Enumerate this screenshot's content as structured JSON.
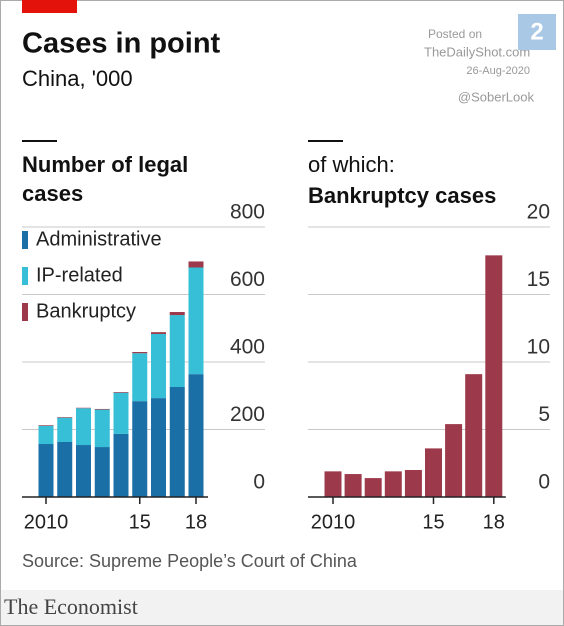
{
  "title": "Cases in point",
  "subtitle": "China, '000",
  "watermark": [
    "Posted on",
    "TheDailyShot.com",
    "26-Aug-2020",
    "@SoberLook"
  ],
  "badge": "2",
  "source": "Source: Supreme People’s Court of China",
  "brand": "The Economist",
  "chart_data": [
    {
      "type": "stacked_bar",
      "title": "Number of legal cases",
      "categories": [
        "2010",
        null,
        null,
        null,
        null,
        "15",
        null,
        null,
        "18"
      ],
      "series": [
        {
          "name": "Administrative",
          "color": "#1a6fa6",
          "values": [
            157,
            163,
            154,
            148,
            187,
            284,
            293,
            326,
            364
          ]
        },
        {
          "name": "IP-related",
          "color": "#36bfd6",
          "values": [
            54,
            72,
            109,
            111,
            122,
            142,
            190,
            213,
            316
          ]
        },
        {
          "name": "Bankruptcy",
          "color": "#9c3a4b",
          "values": [
            1.9,
            1.7,
            1.4,
            1.9,
            2.0,
            3.6,
            5.4,
            9.1,
            17.9
          ]
        }
      ],
      "ylim": [
        0,
        800
      ],
      "yticks": [
        0,
        200,
        400,
        600,
        800
      ],
      "grid": true
    },
    {
      "type": "bar",
      "subtitle": "of which:",
      "title": "Bankruptcy cases",
      "categories": [
        "2010",
        null,
        null,
        null,
        null,
        "15",
        null,
        null,
        "18"
      ],
      "values": [
        1.9,
        1.7,
        1.4,
        1.9,
        2.0,
        3.6,
        5.4,
        9.1,
        17.9
      ],
      "color": "#9c3a4b",
      "ylim": [
        0,
        20
      ],
      "yticks": [
        0,
        5,
        10,
        15,
        20
      ],
      "grid": true
    }
  ]
}
